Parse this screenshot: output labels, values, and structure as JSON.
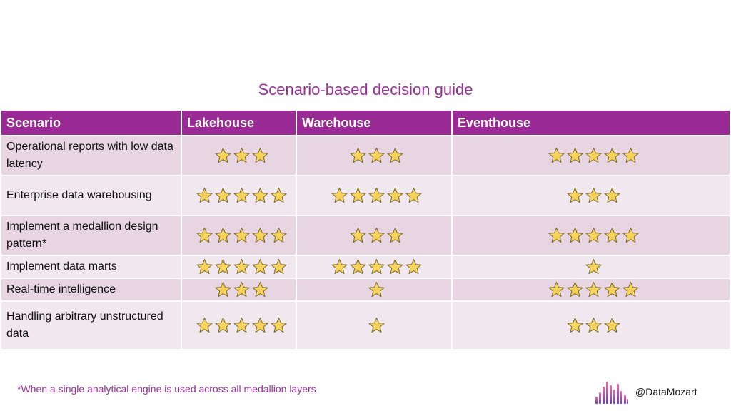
{
  "title": "Scenario-based decision guide",
  "table": {
    "headers": [
      "Scenario",
      "Lakehouse",
      "Warehouse",
      "Eventhouse"
    ],
    "rows": [
      {
        "scenario": "Operational reports with low data latency",
        "ratings": [
          3,
          3,
          5
        ]
      },
      {
        "scenario": "Enterprise data warehousing",
        "ratings": [
          5,
          5,
          3
        ]
      },
      {
        "scenario": "Implement a medallion design pattern*",
        "ratings": [
          5,
          3,
          5
        ]
      },
      {
        "scenario": "Implement data marts",
        "ratings": [
          5,
          5,
          1
        ]
      },
      {
        "scenario": "Real-time intelligence",
        "ratings": [
          3,
          1,
          5
        ]
      },
      {
        "scenario": "Handling arbitrary unstructured data",
        "ratings": [
          5,
          1,
          3
        ]
      }
    ]
  },
  "footnote": "*When a single analytical engine is used across all medallion layers",
  "brand": {
    "handle": "@DataMozart"
  },
  "colors": {
    "accent": "#9a2b96",
    "star_fill": "#f7d35a",
    "star_stroke": "#7a6a3a"
  },
  "icons": {
    "rating": "star-icon",
    "logo": "equalizer-logo-icon"
  }
}
